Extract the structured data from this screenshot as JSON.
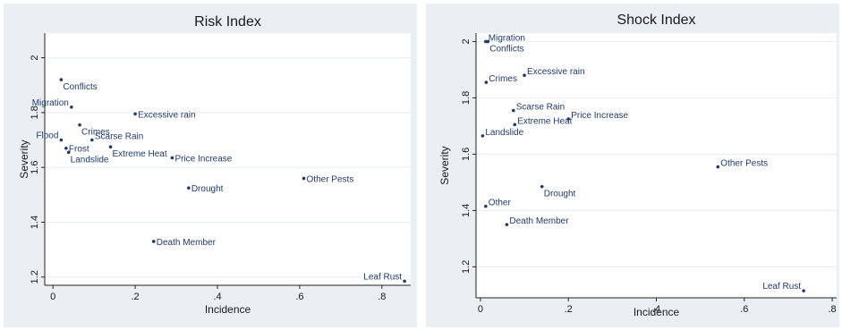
{
  "chart_data": [
    {
      "type": "scatter",
      "title": "Risk Index",
      "xlabel": "Incidence",
      "ylabel": "Severity",
      "xlim": [
        -0.02,
        0.87
      ],
      "ylim": [
        1.17,
        2.09
      ],
      "xticks": [
        0,
        0.2,
        0.4,
        0.6,
        0.8
      ],
      "xtick_labels": [
        "0",
        ".2",
        ".4",
        ".6",
        ".8"
      ],
      "yticks": [
        1.2,
        1.4,
        1.6,
        1.8,
        2.0
      ],
      "ytick_labels": [
        "1.2",
        "1.4",
        "1.6",
        "1.8",
        "2"
      ],
      "grid": true,
      "colors": {
        "point": "#1f3a6e",
        "label": "#1f3a6e",
        "grid": "#ffffff",
        "background": "#e9eff3",
        "plot_area": "#ffffff"
      },
      "points": [
        {
          "label": "Conflicts",
          "x": 0.02,
          "y": 1.92,
          "pos": "br"
        },
        {
          "label": "Migration",
          "x": 0.045,
          "y": 1.82,
          "pos": "tl"
        },
        {
          "label": "Excessive rain",
          "x": 0.2,
          "y": 1.795,
          "pos": "r"
        },
        {
          "label": "Crimes",
          "x": 0.065,
          "y": 1.755,
          "pos": "br"
        },
        {
          "label": "Flood",
          "x": 0.02,
          "y": 1.7,
          "pos": "tl"
        },
        {
          "label": "Scarse Rain",
          "x": 0.095,
          "y": 1.7,
          "pos": "tr"
        },
        {
          "label": "Frost",
          "x": 0.032,
          "y": 1.67,
          "pos": "r"
        },
        {
          "label": "Extreme Heat",
          "x": 0.14,
          "y": 1.675,
          "pos": "br"
        },
        {
          "label": "Landslide",
          "x": 0.038,
          "y": 1.655,
          "pos": "br"
        },
        {
          "label": "Price Increase",
          "x": 0.29,
          "y": 1.635,
          "pos": "r"
        },
        {
          "label": "Other Pests",
          "x": 0.61,
          "y": 1.56,
          "pos": "r"
        },
        {
          "label": "Drought",
          "x": 0.33,
          "y": 1.525,
          "pos": "r"
        },
        {
          "label": "Death Member",
          "x": 0.245,
          "y": 1.33,
          "pos": "r"
        },
        {
          "label": "Leaf Rust",
          "x": 0.855,
          "y": 1.185,
          "pos": "tl"
        }
      ]
    },
    {
      "type": "scatter",
      "title": "Shock Index",
      "xlabel": "Incidence",
      "ylabel": "Severity",
      "xlim": [
        -0.01,
        0.81
      ],
      "ylim": [
        1.09,
        2.03
      ],
      "xticks": [
        0,
        0.2,
        0.4,
        0.6,
        0.8
      ],
      "xtick_labels": [
        "0",
        ".2",
        ".4",
        ".6",
        ".8"
      ],
      "yticks": [
        1.2,
        1.4,
        1.6,
        1.8,
        2.0
      ],
      "ytick_labels": [
        "1.2",
        "1.4",
        "1.6",
        "1.8",
        "2"
      ],
      "grid": true,
      "colors": {
        "point": "#1f3a6e",
        "label": "#1f3a6e",
        "grid": "#ffffff",
        "background": "#e9eff3",
        "plot_area": "#ffffff"
      },
      "points": [
        {
          "label": "Migration",
          "x": 0.012,
          "y": 2.0,
          "pos": "tr"
        },
        {
          "label": "Conflicts",
          "x": 0.017,
          "y": 2.0,
          "pos": "br"
        },
        {
          "label": "Excessive rain",
          "x": 0.1,
          "y": 1.88,
          "pos": "tr"
        },
        {
          "label": "Crimes",
          "x": 0.013,
          "y": 1.855,
          "pos": "tr"
        },
        {
          "label": "Scarse Rain",
          "x": 0.075,
          "y": 1.755,
          "pos": "tr"
        },
        {
          "label": "Price Increase",
          "x": 0.2,
          "y": 1.725,
          "pos": "tr"
        },
        {
          "label": "Extreme Heat",
          "x": 0.078,
          "y": 1.705,
          "pos": "tr"
        },
        {
          "label": "Landslide",
          "x": 0.005,
          "y": 1.665,
          "pos": "tr"
        },
        {
          "label": "Other Pests",
          "x": 0.54,
          "y": 1.555,
          "pos": "tr"
        },
        {
          "label": "Drought",
          "x": 0.14,
          "y": 1.485,
          "pos": "br"
        },
        {
          "label": "Other",
          "x": 0.012,
          "y": 1.415,
          "pos": "tr"
        },
        {
          "label": "Death Member",
          "x": 0.06,
          "y": 1.35,
          "pos": "tr"
        },
        {
          "label": "Leaf Rust",
          "x": 0.735,
          "y": 1.115,
          "pos": "tl"
        }
      ]
    }
  ]
}
